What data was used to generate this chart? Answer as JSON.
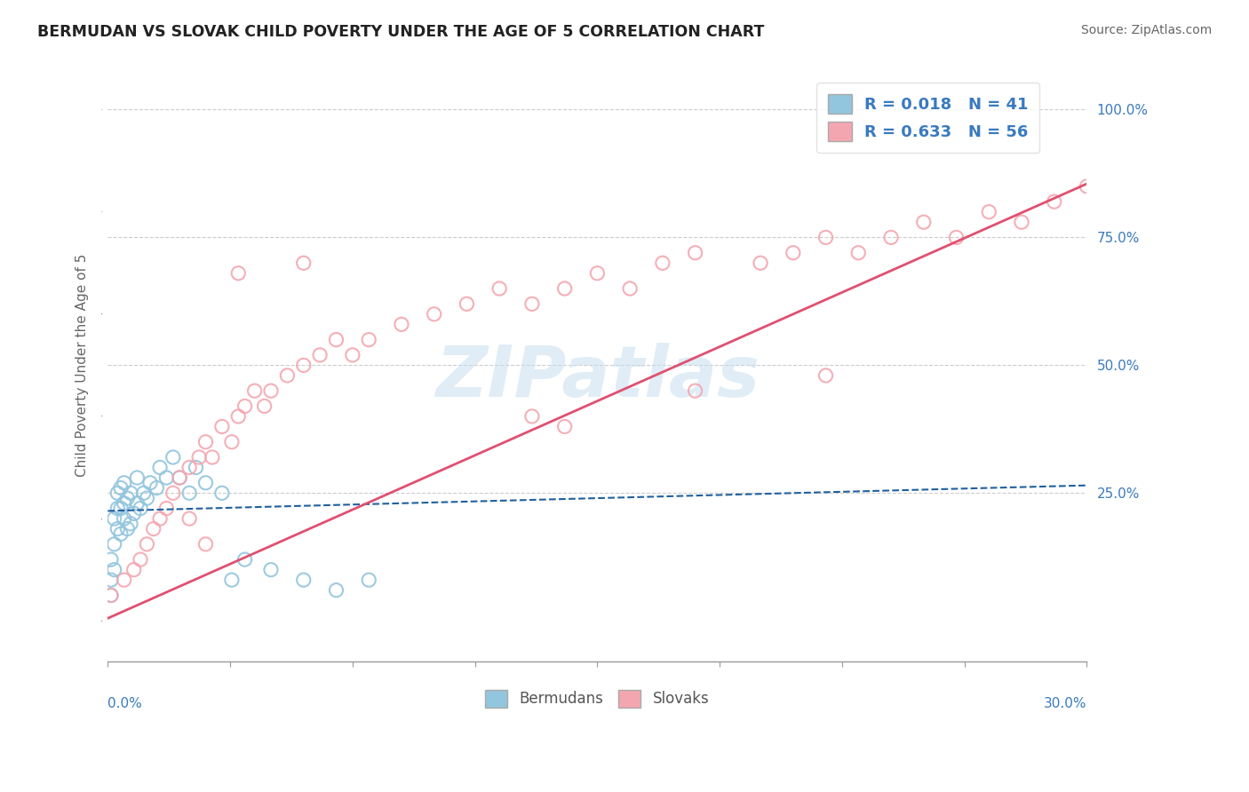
{
  "title": "BERMUDAN VS SLOVAK CHILD POVERTY UNDER THE AGE OF 5 CORRELATION CHART",
  "source": "Source: ZipAtlas.com",
  "ylabel": "Child Poverty Under the Age of 5",
  "xmin": 0.0,
  "xmax": 0.3,
  "ymin": -0.08,
  "ymax": 1.08,
  "watermark": "ZIPatlas",
  "legend_bermudan": "R = 0.018   N = 41",
  "legend_slovak": "R = 0.633   N = 56",
  "bermudan_color": "#92c5de",
  "slovak_color": "#f4a6b0",
  "bermudan_line_color": "#2060a0",
  "slovak_line_color": "#e05070",
  "bermudan_trendline": [
    0.0,
    0.3,
    0.215,
    0.265
  ],
  "slovak_trendline": [
    0.0,
    0.3,
    0.005,
    0.855
  ],
  "bermudan_x": [
    0.001,
    0.001,
    0.001,
    0.002,
    0.002,
    0.002,
    0.003,
    0.003,
    0.003,
    0.004,
    0.004,
    0.004,
    0.005,
    0.005,
    0.005,
    0.006,
    0.006,
    0.007,
    0.007,
    0.008,
    0.009,
    0.009,
    0.01,
    0.011,
    0.012,
    0.013,
    0.015,
    0.016,
    0.018,
    0.02,
    0.022,
    0.025,
    0.027,
    0.03,
    0.035,
    0.038,
    0.042,
    0.05,
    0.06,
    0.07,
    0.08
  ],
  "bermudan_y": [
    0.05,
    0.08,
    0.12,
    0.1,
    0.15,
    0.2,
    0.18,
    0.22,
    0.25,
    0.17,
    0.22,
    0.26,
    0.2,
    0.23,
    0.27,
    0.18,
    0.24,
    0.19,
    0.25,
    0.21,
    0.23,
    0.28,
    0.22,
    0.25,
    0.24,
    0.27,
    0.26,
    0.3,
    0.28,
    0.32,
    0.28,
    0.25,
    0.3,
    0.27,
    0.25,
    0.08,
    0.12,
    0.1,
    0.08,
    0.06,
    0.08
  ],
  "slovak_x": [
    0.001,
    0.005,
    0.008,
    0.01,
    0.012,
    0.014,
    0.016,
    0.018,
    0.02,
    0.022,
    0.025,
    0.028,
    0.03,
    0.032,
    0.035,
    0.038,
    0.04,
    0.042,
    0.045,
    0.048,
    0.05,
    0.055,
    0.06,
    0.065,
    0.07,
    0.075,
    0.08,
    0.09,
    0.1,
    0.11,
    0.12,
    0.13,
    0.14,
    0.15,
    0.16,
    0.17,
    0.18,
    0.2,
    0.21,
    0.22,
    0.23,
    0.24,
    0.25,
    0.26,
    0.27,
    0.28,
    0.29,
    0.3,
    0.18,
    0.22,
    0.14,
    0.06,
    0.04,
    0.03,
    0.025,
    0.13
  ],
  "slovak_y": [
    0.05,
    0.08,
    0.1,
    0.12,
    0.15,
    0.18,
    0.2,
    0.22,
    0.25,
    0.28,
    0.3,
    0.32,
    0.35,
    0.32,
    0.38,
    0.35,
    0.4,
    0.42,
    0.45,
    0.42,
    0.45,
    0.48,
    0.5,
    0.52,
    0.55,
    0.52,
    0.55,
    0.58,
    0.6,
    0.62,
    0.65,
    0.62,
    0.65,
    0.68,
    0.65,
    0.7,
    0.72,
    0.7,
    0.72,
    0.75,
    0.72,
    0.75,
    0.78,
    0.75,
    0.8,
    0.78,
    0.82,
    0.85,
    0.45,
    0.48,
    0.38,
    0.7,
    0.68,
    0.15,
    0.2,
    0.4
  ]
}
